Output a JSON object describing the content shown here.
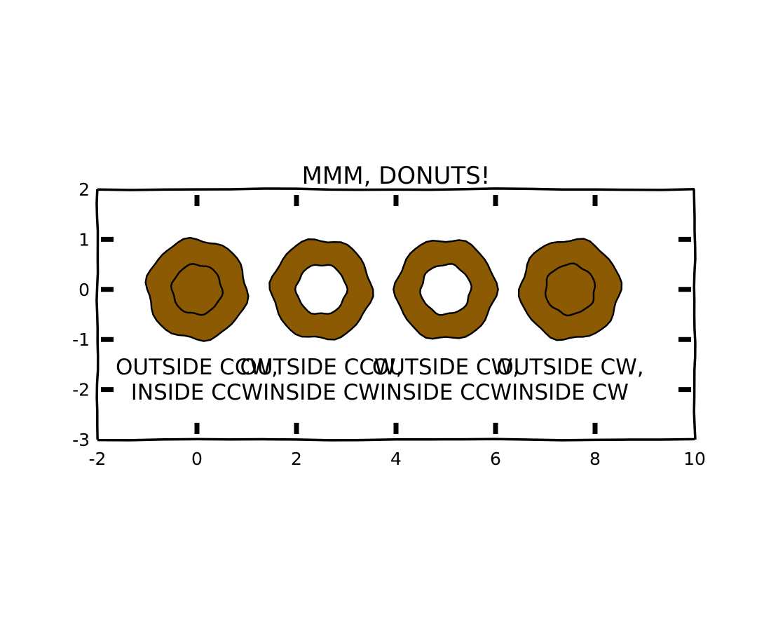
{
  "chart_data": {
    "type": "area",
    "title": "MMM, DONUTS!",
    "xlim": [
      -2,
      10
    ],
    "ylim": [
      -3,
      2
    ],
    "xticks": [
      -2,
      0,
      2,
      4,
      6,
      8,
      10
    ],
    "yticks": [
      -3,
      -2,
      -1,
      0,
      1,
      2
    ],
    "xtick_labels": [
      "-2",
      "0",
      "2",
      "4",
      "6",
      "8",
      "10"
    ],
    "ytick_labels": [
      "-3",
      "-2",
      "-1",
      "0",
      "1",
      "2"
    ],
    "grid": false,
    "legend": null,
    "series": [
      {
        "center": [
          0,
          0
        ],
        "outer_radius": 1.0,
        "inner_radius": 0.5,
        "outside_label": "OUTSIDE CCW,",
        "inside_label": "INSIDE CCW",
        "inner_hole": false
      },
      {
        "center": [
          2.5,
          0
        ],
        "outer_radius": 1.0,
        "inner_radius": 0.5,
        "outside_label": "OUTSIDE CCW,",
        "inside_label": "INSIDE CW",
        "inner_hole": true
      },
      {
        "center": [
          5,
          0
        ],
        "outer_radius": 1.0,
        "inner_radius": 0.5,
        "outside_label": "OUTSIDE CW,",
        "inside_label": "INSIDE CCW",
        "inner_hole": true
      },
      {
        "center": [
          7.5,
          0
        ],
        "outer_radius": 1.0,
        "inner_radius": 0.5,
        "outside_label": "OUTSIDE CW,",
        "inside_label": "INSIDE CW",
        "inner_hole": false
      }
    ],
    "colors": {
      "donut_fill": "#8b5a02",
      "stroke": "#000000",
      "background": "#ffffff"
    }
  }
}
